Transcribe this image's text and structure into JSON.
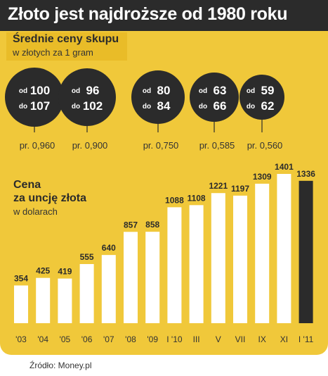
{
  "title": "Złoto jest najdroższe od 1980 roku",
  "purchase_prices": {
    "title": "Średnie ceny skupu",
    "unit": "w złotych za 1 gram",
    "items": [
      {
        "from_label": "od",
        "from": "100",
        "to_label": "do",
        "to": "107",
        "purity": "pr. 0,960"
      },
      {
        "from_label": "od",
        "from": "96",
        "to_label": "do",
        "to": "102",
        "purity": "pr. 0,900"
      },
      {
        "from_label": "od",
        "from": "80",
        "to_label": "do",
        "to": "84",
        "purity": "pr. 0,750"
      },
      {
        "from_label": "od",
        "from": "63",
        "to_label": "do",
        "to": "66",
        "purity": "pr. 0,585"
      },
      {
        "from_label": "od",
        "from": "59",
        "to_label": "do",
        "to": "62",
        "purity": "pr. 0,560"
      }
    ]
  },
  "chart_data": {
    "type": "bar",
    "title": "Cena za uncję złota",
    "title_lines": [
      "Cena",
      "za uncję złota"
    ],
    "ylabel": "w dolarach",
    "categories": [
      "'03",
      "'04",
      "'05",
      "'06",
      "'07",
      "'08",
      "'09",
      "I '10",
      "III",
      "V",
      "VII",
      "IX",
      "XI",
      "I '11"
    ],
    "values": [
      354,
      425,
      419,
      555,
      640,
      857,
      858,
      1088,
      1108,
      1221,
      1197,
      1309,
      1401,
      1336
    ],
    "highlight_index": 13,
    "ylim": [
      0,
      1500
    ],
    "grid": false,
    "colors": {
      "bar": "#ffffff",
      "highlight": "#2b2b2b"
    }
  },
  "source": "Źródło: Money.pl",
  "colors": {
    "background": "#f0c83a",
    "title_bar": "#2b2b2b",
    "circle": "#2b2b2b"
  }
}
